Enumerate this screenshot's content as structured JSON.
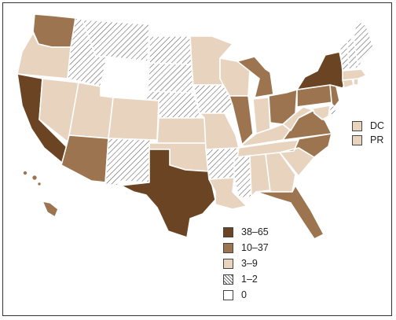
{
  "colors": {
    "c38_65": "#6b4423",
    "c10_37": "#9c7550",
    "c3_9": "#e8d3bf",
    "c1_2": "hatch",
    "c0": "#ffffff"
  },
  "legend": [
    {
      "key": "c38_65",
      "label": "38–65"
    },
    {
      "key": "c10_37",
      "label": "10–37"
    },
    {
      "key": "c3_9",
      "label": "3–9"
    },
    {
      "key": "c1_2",
      "label": "1–2"
    },
    {
      "key": "c0",
      "label": "0"
    }
  ],
  "territories": [
    {
      "key": "c3_9",
      "label": "DC"
    },
    {
      "key": "c3_9",
      "label": "PR"
    }
  ],
  "states": {
    "WA": "c10_37",
    "OR": "c3_9",
    "CA": "c38_65",
    "NV": "c3_9",
    "ID": "c1_2",
    "MT": "c1_2",
    "WY": "c0",
    "UT": "c3_9",
    "AZ": "c10_37",
    "CO": "c3_9",
    "NM": "c1_2",
    "ND": "c1_2",
    "SD": "c1_2",
    "NE": "c1_2",
    "KS": "c3_9",
    "OK": "c3_9",
    "TX": "c38_65",
    "MN": "c3_9",
    "IA": "c1_2",
    "MO": "c3_9",
    "AR": "c1_2",
    "LA": "c3_9",
    "WI": "c3_9",
    "IL": "c10_37",
    "MI": "c10_37",
    "IN": "c3_9",
    "OH": "c10_37",
    "KY": "c3_9",
    "TN": "c3_9",
    "MS": "c1_2",
    "AL": "c3_9",
    "GA": "c3_9",
    "FL": "c10_37",
    "SC": "c3_9",
    "NC": "c10_37",
    "VA": "c10_37",
    "WV": "c3_9",
    "PA": "c10_37",
    "NY": "c38_65",
    "NJ": "c10_37",
    "DE": "c1_2",
    "MD": "c3_9",
    "CT": "c3_9",
    "RI": "c3_9",
    "MA": "c3_9",
    "VT": "c1_2",
    "NH": "c1_2",
    "ME": "c1_2",
    "AK": "c0",
    "HI": "c10_37"
  }
}
